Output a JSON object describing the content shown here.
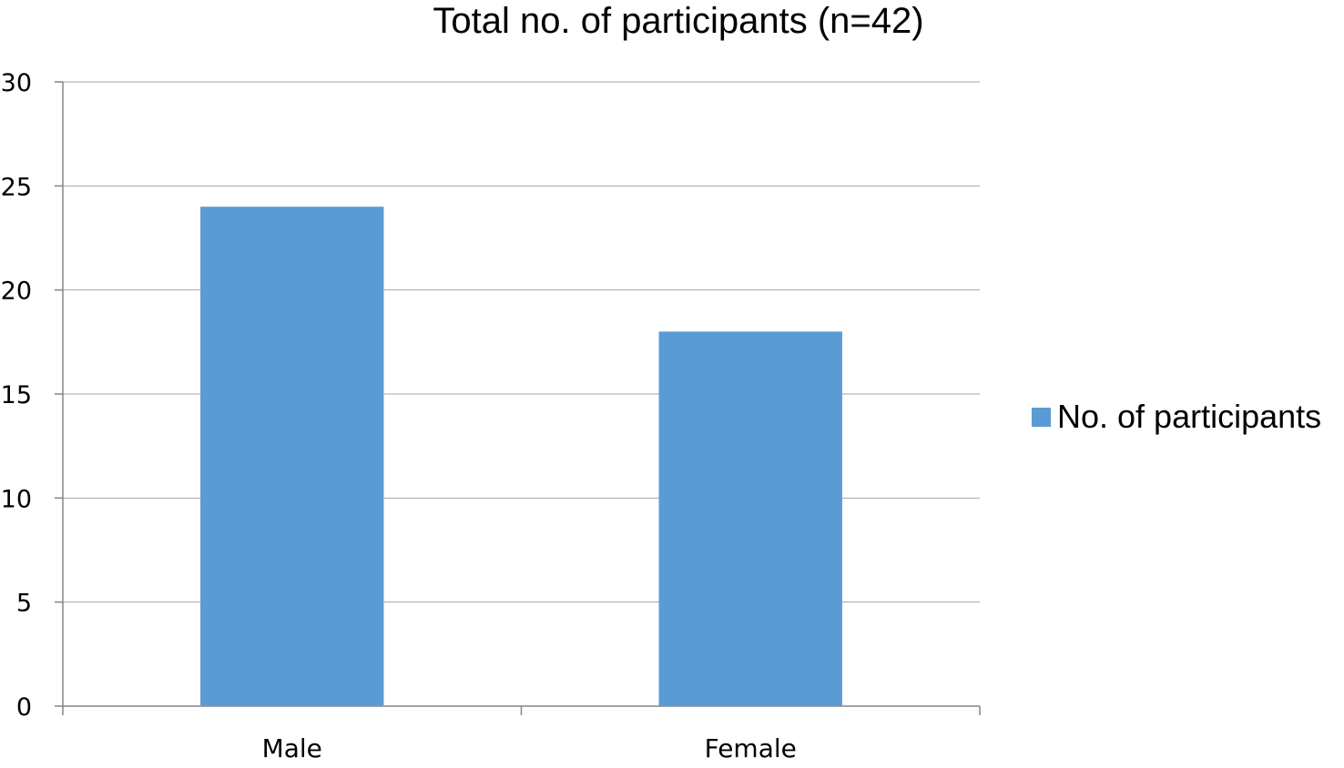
{
  "chart_data": {
    "type": "bar",
    "title": "Total no. of participants (n=42)",
    "categories": [
      "Male",
      "Female"
    ],
    "series": [
      {
        "name": "No. of participants",
        "values": [
          24,
          18
        ],
        "color": "#5B9BD5"
      }
    ],
    "xlabel": "",
    "ylabel": "",
    "ylim": [
      0,
      30
    ],
    "yticks": [
      0,
      5,
      10,
      15,
      20,
      25,
      30
    ],
    "grid": true,
    "legend": "right",
    "colors": {
      "grid": "#A6A6A6",
      "axis": "#868686"
    }
  }
}
